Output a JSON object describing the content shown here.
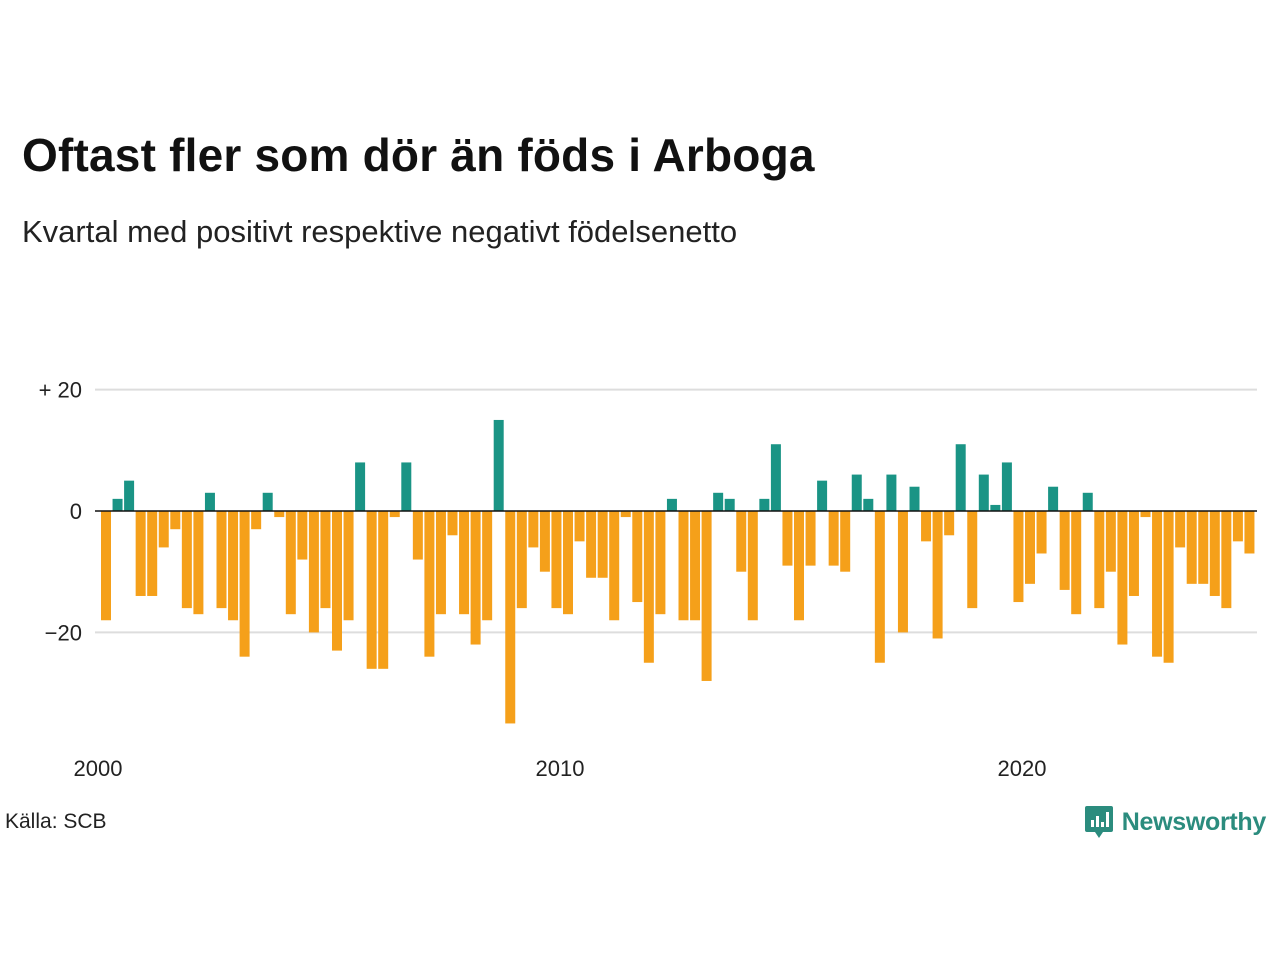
{
  "header": {
    "title": "Oftast fler som dör än föds i Arboga",
    "subtitle": "Kvartal med positivt respektive negativt födelsenetto"
  },
  "footer": {
    "source": "Källa: SCB",
    "logo_text": "Newsworthy"
  },
  "colors": {
    "positive": "#1a9485",
    "negative": "#f5a01a",
    "grid": "#dddddd",
    "baseline": "#111111",
    "logo": "#2b8c7e"
  },
  "chart_data": {
    "type": "bar",
    "title": "Oftast fler som dör än föds i Arboga",
    "subtitle": "Kvartal med positivt respektive negativt födelsenetto",
    "xlabel": "",
    "ylabel": "",
    "x_start": "2000 Q1",
    "x_end": "2025 Q1",
    "x_ticks": [
      "2000",
      "2010",
      "2020"
    ],
    "y_ticks": [
      {
        "value": 20,
        "label": "+ 20"
      },
      {
        "value": 0,
        "label": "0"
      },
      {
        "value": -20,
        "label": "−20"
      }
    ],
    "ylim": [
      -36,
      20
    ],
    "grid": true,
    "values": [
      -18,
      2,
      5,
      -14,
      -14,
      -6,
      -3,
      -16,
      -17,
      3,
      -16,
      -18,
      -24,
      -3,
      3,
      -1,
      -17,
      -8,
      -20,
      -16,
      -23,
      -18,
      8,
      -26,
      -26,
      -1,
      8,
      -8,
      -24,
      -17,
      -4,
      -17,
      -22,
      -18,
      15,
      -35,
      -16,
      -6,
      -10,
      -16,
      -17,
      -5,
      -11,
      -11,
      -18,
      -1,
      -15,
      -25,
      -17,
      2,
      -18,
      -18,
      -28,
      3,
      2,
      -10,
      -18,
      2,
      11,
      -9,
      -18,
      -9,
      5,
      -9,
      -10,
      6,
      2,
      -25,
      6,
      -20,
      4,
      -5,
      -21,
      -4,
      11,
      -16,
      6,
      1,
      8,
      -15,
      -12,
      -7,
      4,
      -13,
      -17,
      3,
      -16,
      -10,
      -22,
      -14,
      -1,
      -24,
      -25,
      -6,
      -12,
      -12,
      -14,
      -16,
      -5,
      -7
    ]
  }
}
